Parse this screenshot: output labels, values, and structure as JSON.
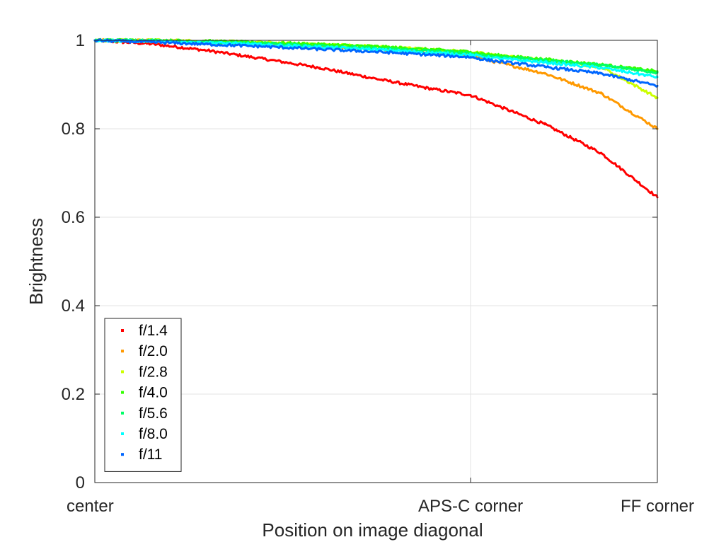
{
  "chart_data": {
    "type": "scatter",
    "title": "",
    "xlabel": "Position on image diagonal",
    "ylabel": "Brightness",
    "xlim": [
      0,
      1
    ],
    "ylim": [
      0,
      1
    ],
    "x_ticks": [
      {
        "value": 0,
        "label": "center"
      },
      {
        "value": 0.668,
        "label": "APS-C corner"
      },
      {
        "value": 1,
        "label": "FF corner"
      }
    ],
    "y_ticks": [
      {
        "value": 0,
        "label": "0"
      },
      {
        "value": 0.2,
        "label": "0.2"
      },
      {
        "value": 0.4,
        "label": "0.4"
      },
      {
        "value": 0.6,
        "label": "0.6"
      },
      {
        "value": 0.8,
        "label": "0.8"
      },
      {
        "value": 1,
        "label": "1"
      }
    ],
    "grid": true,
    "legend_position": "bottom-left",
    "x": [
      0,
      0.1,
      0.2,
      0.3,
      0.4,
      0.5,
      0.6,
      0.668,
      0.7,
      0.8,
      0.9,
      1.0
    ],
    "series": [
      {
        "name": "f/1.4",
        "color": "#ff0000",
        "values": [
          1.0,
          0.992,
          0.977,
          0.958,
          0.938,
          0.913,
          0.89,
          0.876,
          0.86,
          0.81,
          0.745,
          0.645
        ]
      },
      {
        "name": "f/2.0",
        "color": "#ff9900",
        "values": [
          1.0,
          0.999,
          0.996,
          0.992,
          0.987,
          0.98,
          0.972,
          0.965,
          0.955,
          0.925,
          0.88,
          0.8
        ]
      },
      {
        "name": "f/2.8",
        "color": "#ccff00",
        "values": [
          1.0,
          1.0,
          0.998,
          0.995,
          0.991,
          0.986,
          0.979,
          0.974,
          0.968,
          0.955,
          0.94,
          0.87
        ]
      },
      {
        "name": "f/4.0",
        "color": "#33ff00",
        "values": [
          1.0,
          1.0,
          0.998,
          0.995,
          0.991,
          0.986,
          0.979,
          0.974,
          0.968,
          0.957,
          0.945,
          0.93
        ]
      },
      {
        "name": "f/5.6",
        "color": "#00ff66",
        "values": [
          1.0,
          0.999,
          0.996,
          0.993,
          0.988,
          0.982,
          0.976,
          0.97,
          0.965,
          0.955,
          0.944,
          0.927
        ]
      },
      {
        "name": "f/8.0",
        "color": "#00ffff",
        "values": [
          1.0,
          0.998,
          0.995,
          0.99,
          0.985,
          0.979,
          0.972,
          0.967,
          0.961,
          0.95,
          0.938,
          0.917
        ]
      },
      {
        "name": "f/11",
        "color": "#0066ff",
        "values": [
          1.0,
          0.996,
          0.991,
          0.986,
          0.98,
          0.974,
          0.967,
          0.962,
          0.955,
          0.94,
          0.925,
          0.897
        ]
      }
    ]
  }
}
